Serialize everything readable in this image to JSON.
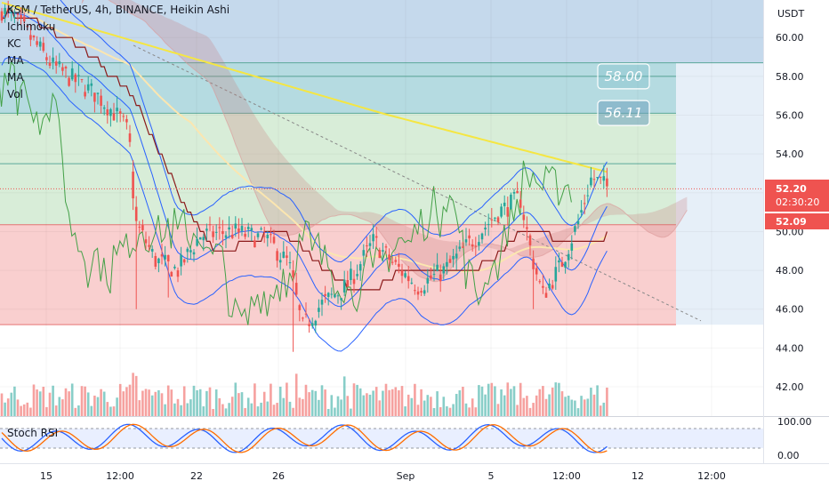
{
  "header": {
    "symbol": "KSM / TetherUS, 4h, BINANCE, Heikin Ashi",
    "indicators": [
      "Ichimoku",
      "KC",
      "MA",
      "MA",
      "Vol"
    ],
    "currency": "USDT",
    "stoch_label": "Stoch RSI"
  },
  "price_tags": {
    "last": "52.20",
    "countdown": "02:30:20",
    "second": "52.09"
  },
  "boxes": [
    {
      "label": "58.00",
      "value": 58.0
    },
    {
      "label": "56.11",
      "value": 56.11
    }
  ],
  "colors": {
    "up": "#26a69a",
    "down": "#ef5350",
    "ma_yellow": "#f5e642",
    "ma_cream": "#fbe6b0",
    "kc_blue": "#2962ff",
    "ichimoku_green": "#43a047",
    "ichimoku_dark": "#8b1a1a",
    "stoch_blue": "#2962ff",
    "stoch_orange": "#ff6d00"
  },
  "chart_data": {
    "type": "candlestick",
    "price_axis": {
      "min": 42,
      "max": 62,
      "ticks": [
        "60.00",
        "58.00",
        "56.00",
        "54.00",
        "52.00",
        "50.00",
        "48.00",
        "46.00",
        "44.00",
        "42.00"
      ]
    },
    "time_axis": {
      "ticks": [
        "15",
        "12:00",
        "22",
        "26",
        "Sep",
        "5",
        "12:00",
        "12",
        "12:00"
      ]
    },
    "zones": [
      {
        "name": "blue",
        "from": 58.7,
        "to": 62.0
      },
      {
        "name": "teal",
        "from": 56.1,
        "to": 58.7
      },
      {
        "name": "green",
        "from": 50.35,
        "to": 56.1
      },
      {
        "name": "red",
        "from": 45.2,
        "to": 50.35
      }
    ],
    "levels": [
      58.7,
      58.0,
      56.1,
      53.5,
      50.35,
      45.2
    ],
    "candles_start": 61.5,
    "stoch_axis": {
      "ticks": [
        "100.00",
        "0.00"
      ]
    }
  }
}
